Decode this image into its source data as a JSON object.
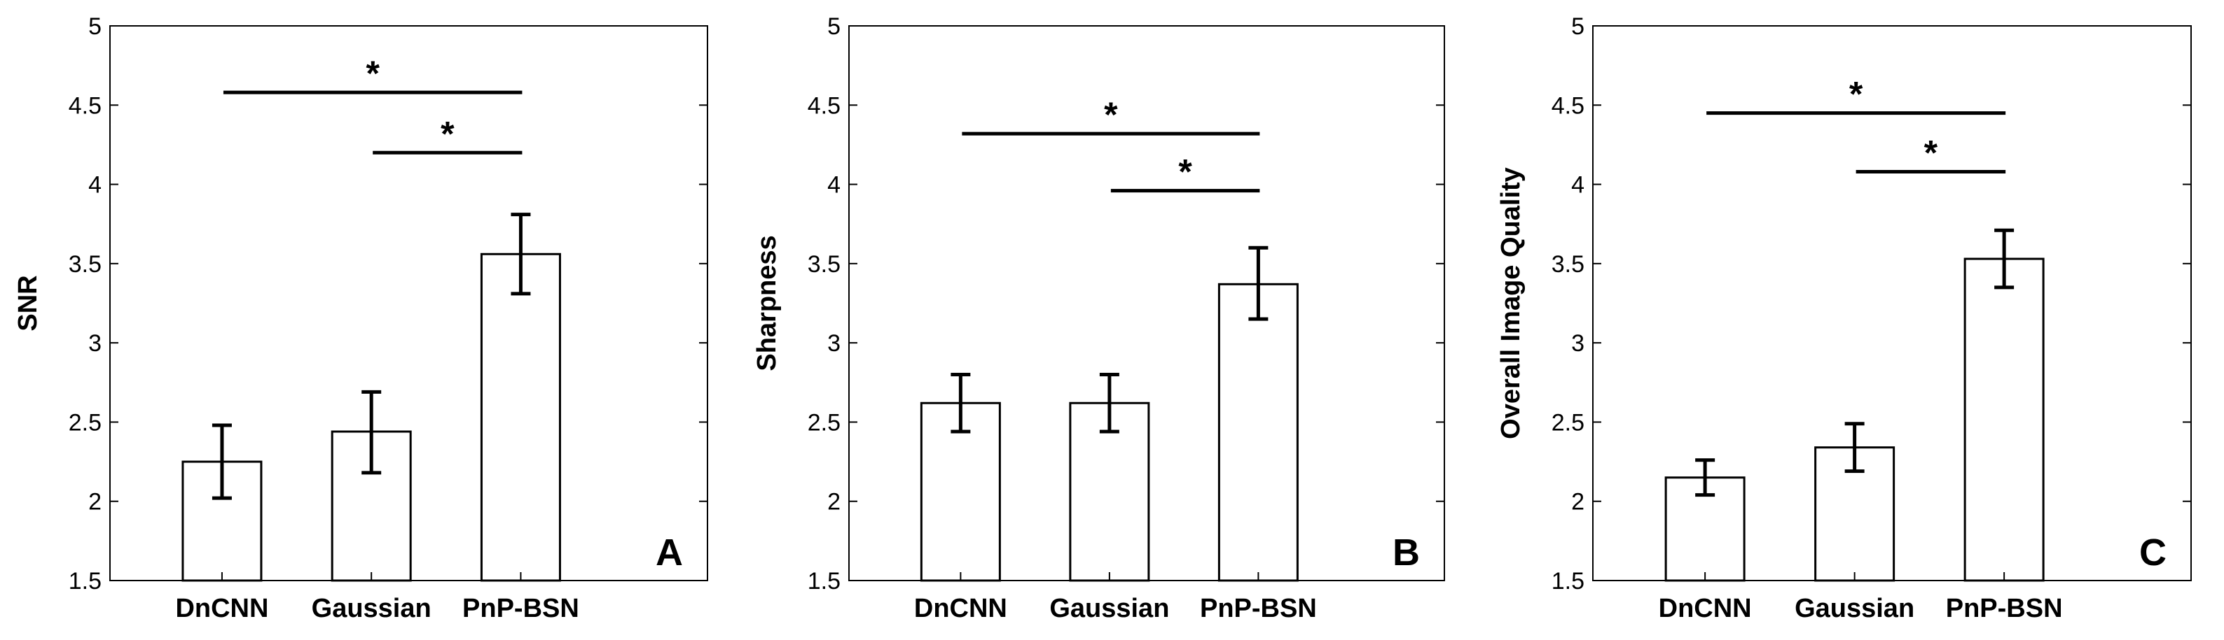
{
  "chart_data": [
    {
      "type": "bar",
      "panel": "A",
      "ylabel": "SNR",
      "categories": [
        "DnCNN",
        "Gaussian",
        "PnP-BSN"
      ],
      "values": [
        2.25,
        2.44,
        3.56
      ],
      "error_low": [
        2.02,
        2.18,
        3.31
      ],
      "error_high": [
        2.48,
        2.69,
        3.81
      ],
      "ylim": [
        1.5,
        5
      ],
      "yticks": [
        "1.5",
        "2",
        "2.5",
        "3",
        "3.5",
        "4",
        "4.5",
        "5"
      ],
      "significance": [
        {
          "from": 0,
          "to": 2,
          "y": 4.58,
          "label": "*"
        },
        {
          "from": 1,
          "to": 2,
          "y": 4.2,
          "label": "*"
        }
      ]
    },
    {
      "type": "bar",
      "panel": "B",
      "ylabel": "Sharpness",
      "categories": [
        "DnCNN",
        "Gaussian",
        "PnP-BSN"
      ],
      "values": [
        2.62,
        2.62,
        3.37
      ],
      "error_low": [
        2.44,
        2.44,
        3.15
      ],
      "error_high": [
        2.8,
        2.8,
        3.6
      ],
      "ylim": [
        1.5,
        5
      ],
      "yticks": [
        "1.5",
        "2",
        "2.5",
        "3",
        "3.5",
        "4",
        "4.5",
        "5"
      ],
      "significance": [
        {
          "from": 0,
          "to": 2,
          "y": 4.32,
          "label": "*"
        },
        {
          "from": 1,
          "to": 2,
          "y": 3.96,
          "label": "*"
        }
      ]
    },
    {
      "type": "bar",
      "panel": "C",
      "ylabel": "Overall Image Quality",
      "categories": [
        "DnCNN",
        "Gaussian",
        "PnP-BSN"
      ],
      "values": [
        2.15,
        2.34,
        3.53
      ],
      "error_low": [
        2.04,
        2.19,
        3.35
      ],
      "error_high": [
        2.26,
        2.49,
        3.71
      ],
      "ylim": [
        1.5,
        5
      ],
      "yticks": [
        "1.5",
        "2",
        "2.5",
        "3",
        "3.5",
        "4",
        "4.5",
        "5"
      ],
      "significance": [
        {
          "from": 0,
          "to": 2,
          "y": 4.45,
          "label": "*"
        },
        {
          "from": 1,
          "to": 2,
          "y": 4.08,
          "label": "*"
        }
      ]
    }
  ]
}
